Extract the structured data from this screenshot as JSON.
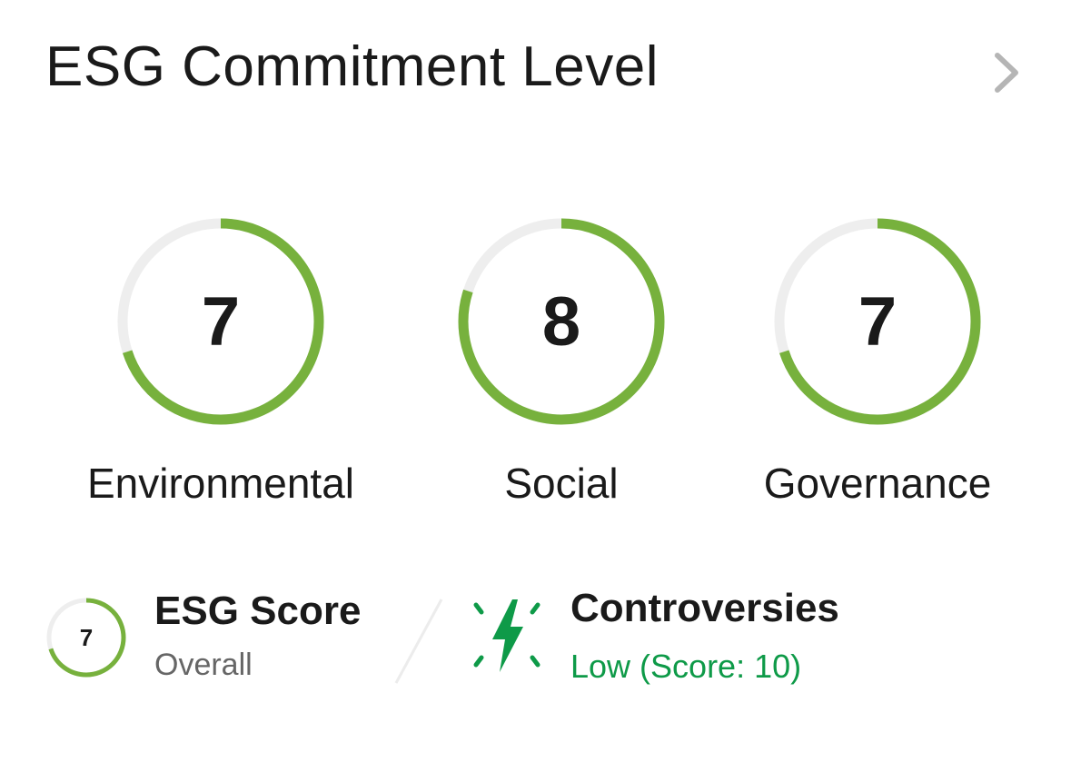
{
  "header": {
    "title": "ESG Commitment Level",
    "chevron_icon": "chevron-right-icon"
  },
  "colors": {
    "progress": "#77b13d",
    "track": "#eeeeee",
    "controversy": "#0e9a48"
  },
  "pillars": [
    {
      "label": "Environmental",
      "score": "7",
      "value": 7,
      "max": 10
    },
    {
      "label": "Social",
      "score": "8",
      "value": 8,
      "max": 10
    },
    {
      "label": "Governance",
      "score": "7",
      "value": 7,
      "max": 10
    }
  ],
  "esg_score": {
    "score": "7",
    "value": 7,
    "max": 10,
    "title": "ESG Score",
    "subtitle": "Overall"
  },
  "controversies": {
    "icon": "lightning-bolt-icon",
    "title": "Controversies",
    "subtitle": "Low (Score: 10)"
  }
}
